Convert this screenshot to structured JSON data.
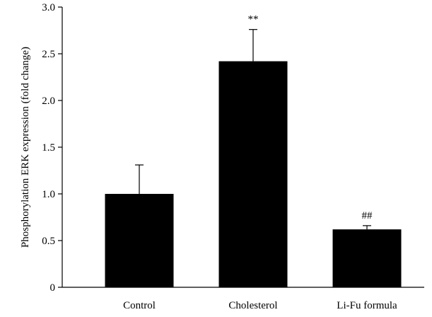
{
  "chart_data": {
    "type": "bar",
    "title": "",
    "xlabel": "",
    "ylabel": "Phosphorylation ERK expression (fold change)",
    "ylim": [
      0,
      3.0
    ],
    "yticks": [
      0,
      0.5,
      1.0,
      1.5,
      2.0,
      2.5,
      3.0
    ],
    "ytick_labels": [
      "0",
      "0.5",
      "1.0",
      "1.5",
      "2.0",
      "2.5",
      "3.0"
    ],
    "categories": [
      "Control",
      "Cholesterol",
      "Li-Fu formula"
    ],
    "values": [
      1.0,
      2.42,
      0.62
    ],
    "errors": [
      0.31,
      0.34,
      0.04
    ],
    "annotations": [
      "",
      "**",
      "##"
    ],
    "bar_color": "#000000",
    "grid": false,
    "legend": "none"
  }
}
